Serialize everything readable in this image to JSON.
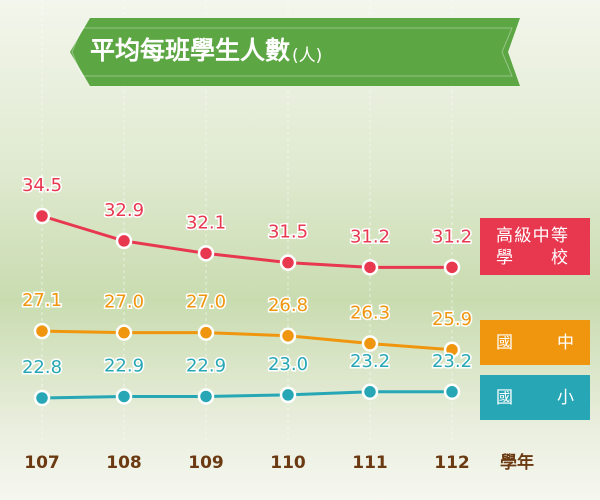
{
  "chart_data": {
    "type": "line",
    "title": "平均每班學生人數",
    "unit": "(人)",
    "x_label": "學年",
    "categories": [
      "107",
      "108",
      "109",
      "110",
      "111",
      "112"
    ],
    "series": [
      {
        "name": "高級中等學校",
        "color": "#e8384f",
        "values": [
          34.5,
          32.9,
          32.1,
          31.5,
          31.2,
          31.2
        ]
      },
      {
        "name": "國中",
        "color": "#f0960e",
        "values": [
          27.1,
          27,
          27,
          26.8,
          26.3,
          25.9
        ],
        "value_labels": [
          "27.1",
          "27.0",
          "27.0",
          "26.8",
          "26.3",
          "25.9"
        ]
      },
      {
        "name": "國小",
        "color": "#27a7b5",
        "values": [
          22.8,
          22.9,
          22.9,
          23,
          23.2,
          23.2
        ],
        "value_labels": [
          "22.8",
          "22.9",
          "22.9",
          "23.0",
          "23.2",
          "23.2"
        ]
      }
    ]
  }
}
